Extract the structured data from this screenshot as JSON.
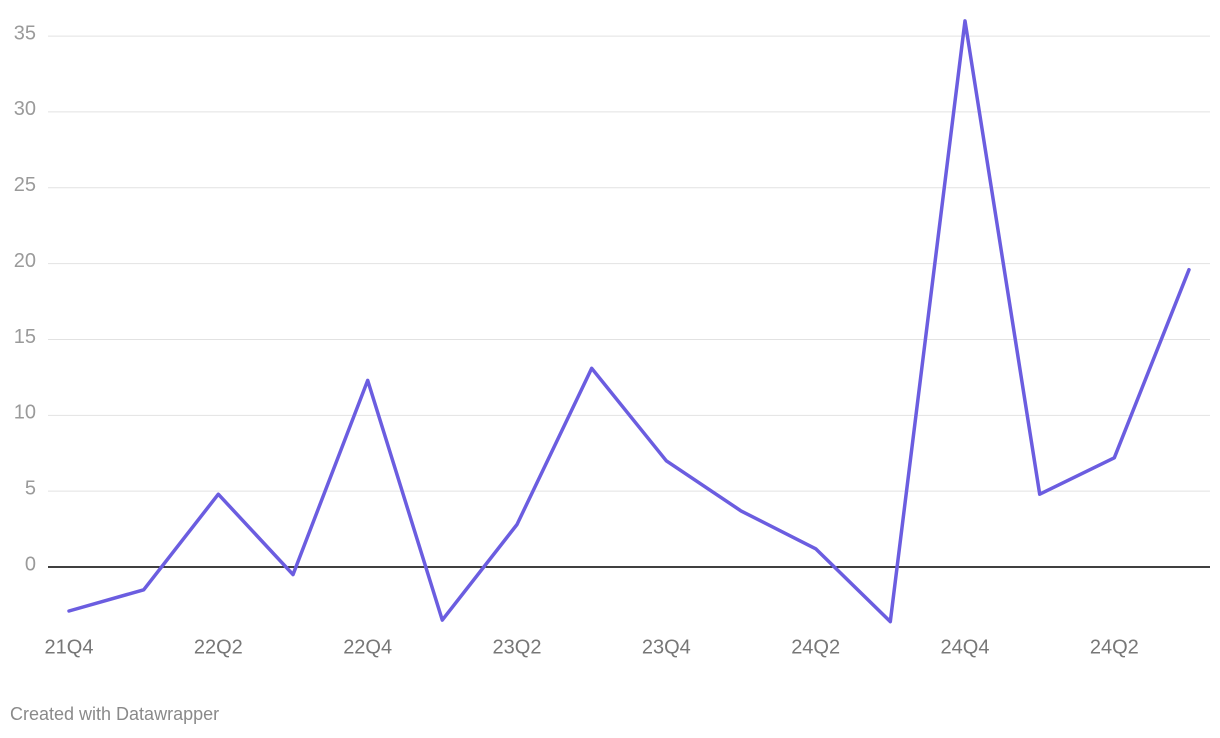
{
  "chart_data": {
    "type": "line",
    "categories": [
      "21Q4",
      null,
      "22Q2",
      null,
      "22Q4",
      null,
      "23Q2",
      null,
      "23Q4",
      null,
      "24Q2",
      null,
      "24Q4",
      null,
      "24Q2",
      null
    ],
    "series": [
      {
        "color": "#6b5de0",
        "values": [
          -2.9,
          -1.5,
          4.8,
          -0.5,
          12.3,
          -3.5,
          2.8,
          13.1,
          7.0,
          3.7,
          1.2,
          -3.6,
          36.0,
          4.8,
          7.2,
          19.6
        ]
      }
    ],
    "ylim": [
      -4,
      36
    ],
    "yticks": [
      0,
      5,
      10,
      15,
      20,
      25,
      30,
      35
    ],
    "grid": true,
    "footer": "Created with Datawrapper"
  }
}
